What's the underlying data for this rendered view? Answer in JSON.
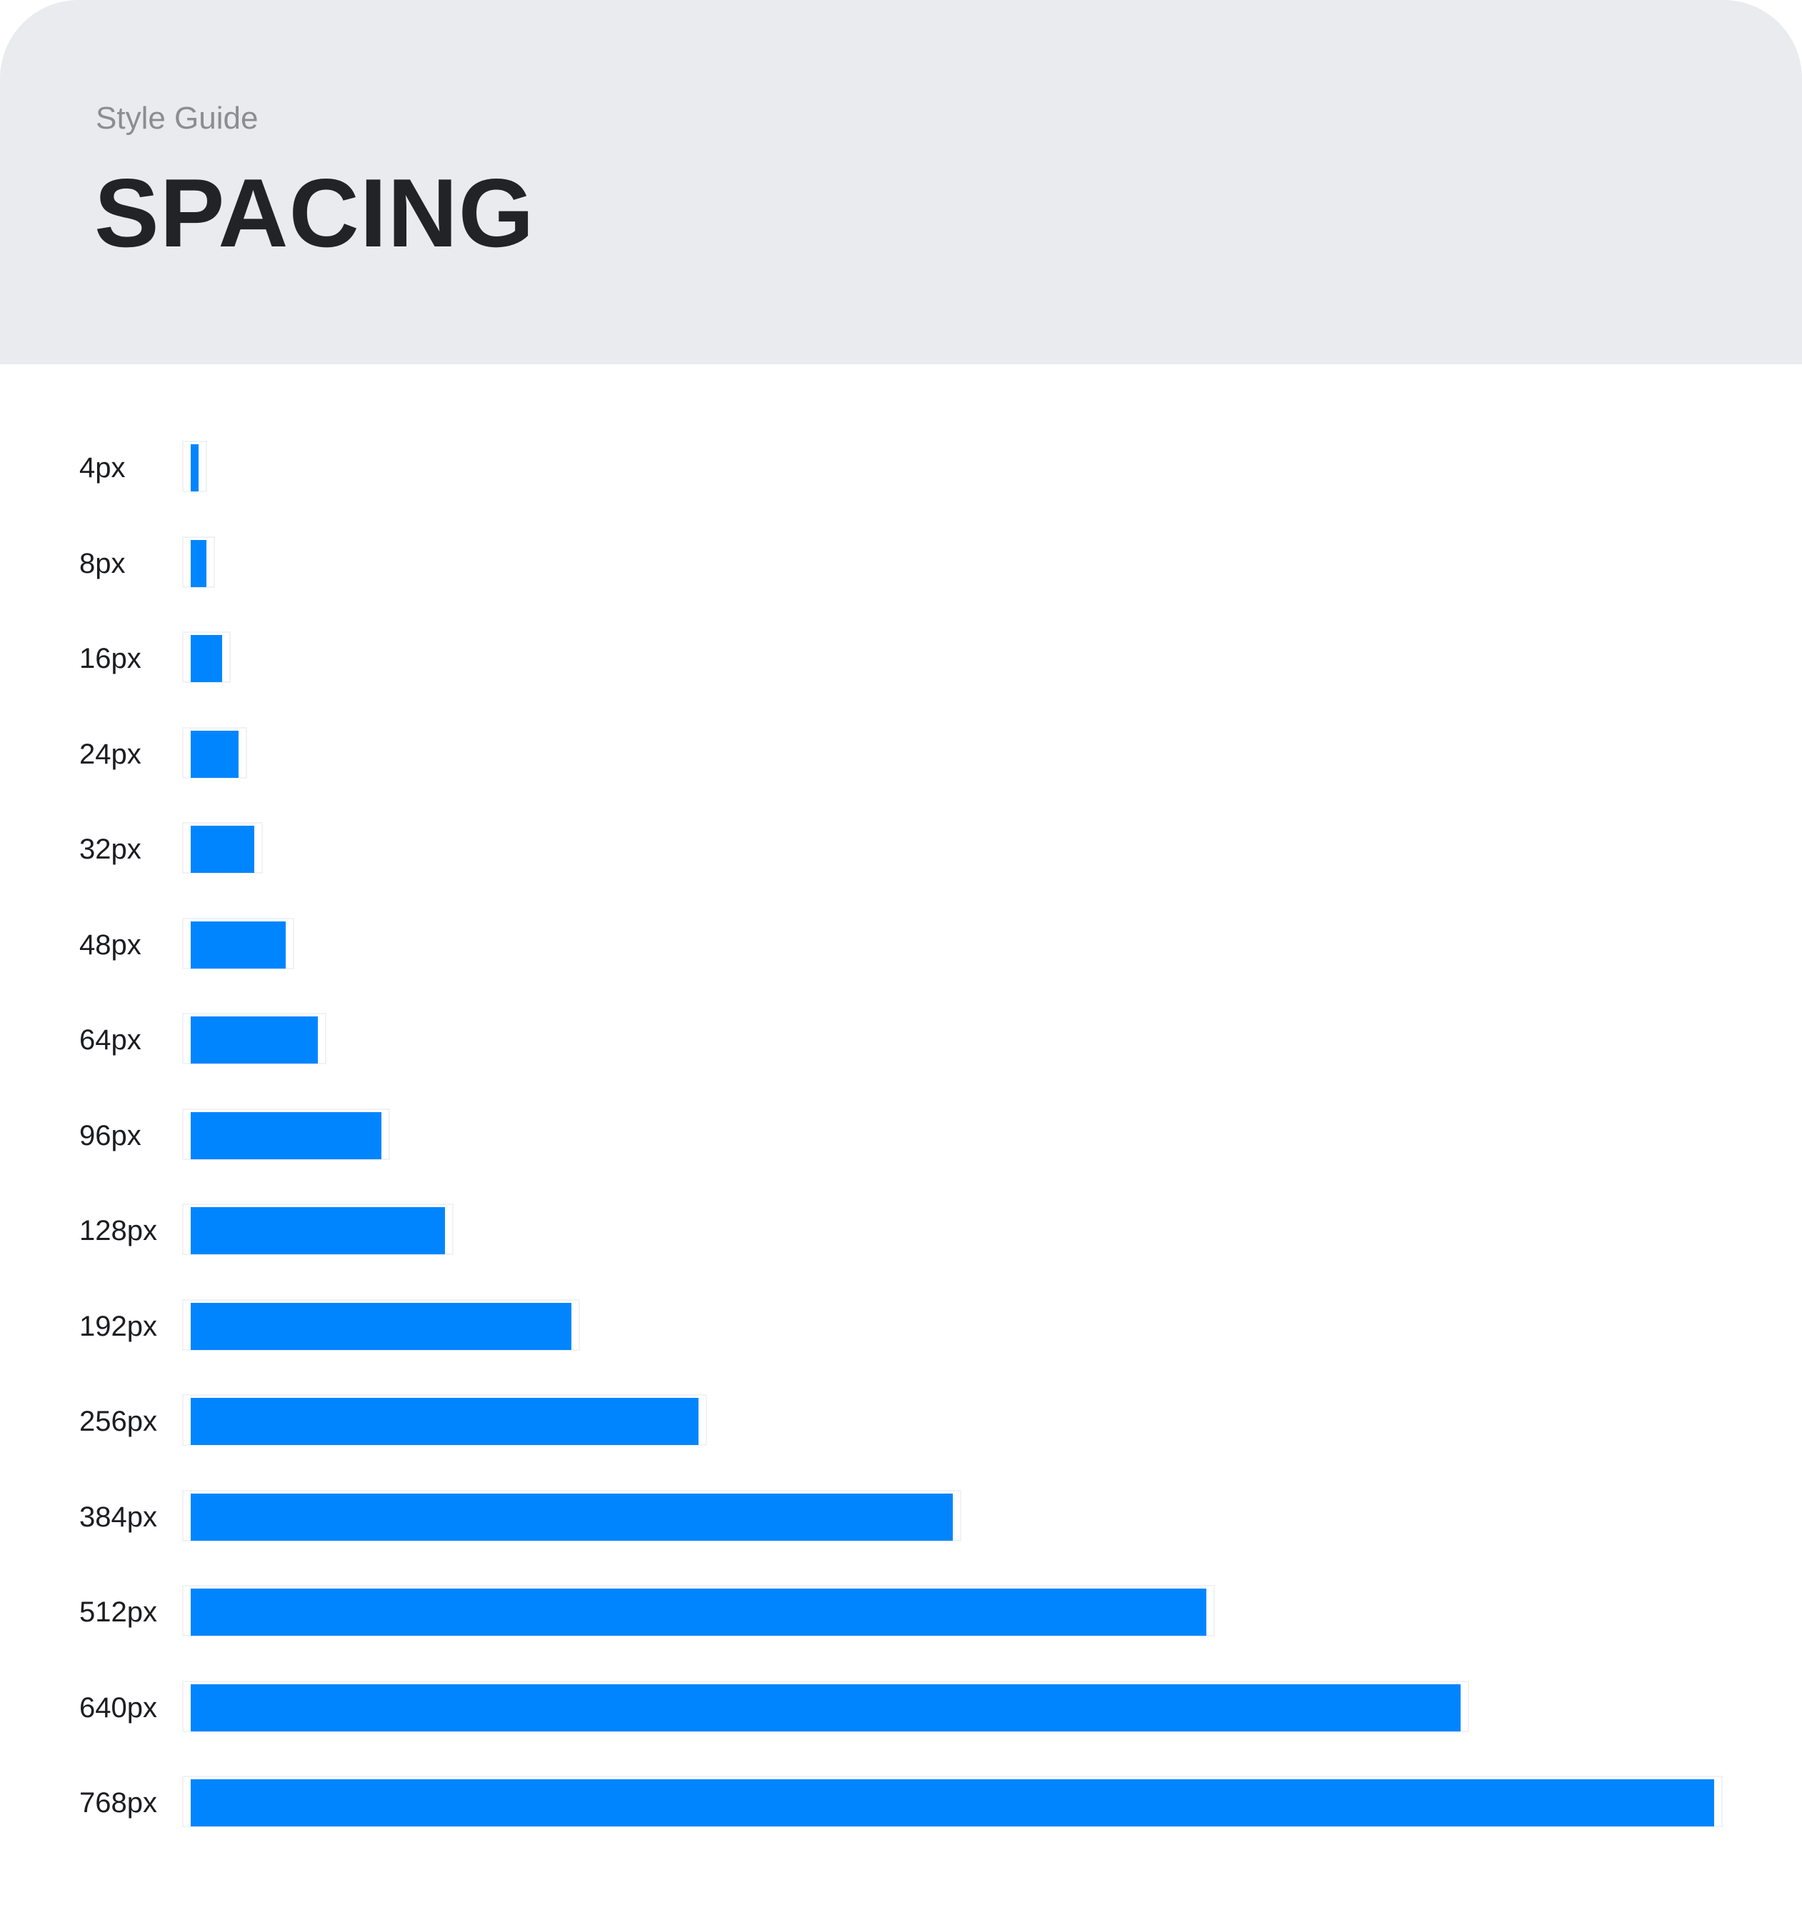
{
  "header": {
    "eyebrow": "Style Guide",
    "title": "SPACING"
  },
  "colors": {
    "header_background": "#eaebef",
    "bar": "#0085ff",
    "title": "#212327",
    "eyebrow": "#8b8d93"
  },
  "spacing_scale": [
    {
      "label": "4px",
      "value": 4
    },
    {
      "label": "8px",
      "value": 8
    },
    {
      "label": "16px",
      "value": 16
    },
    {
      "label": "24px",
      "value": 24
    },
    {
      "label": "32px",
      "value": 32
    },
    {
      "label": "48px",
      "value": 48
    },
    {
      "label": "64px",
      "value": 64
    },
    {
      "label": "96px",
      "value": 96
    },
    {
      "label": "128px",
      "value": 128
    },
    {
      "label": "192px",
      "value": 192
    },
    {
      "label": "256px",
      "value": 256
    },
    {
      "label": "384px",
      "value": 384
    },
    {
      "label": "512px",
      "value": 512
    },
    {
      "label": "640px",
      "value": 640
    },
    {
      "label": "768px",
      "value": 768
    }
  ]
}
